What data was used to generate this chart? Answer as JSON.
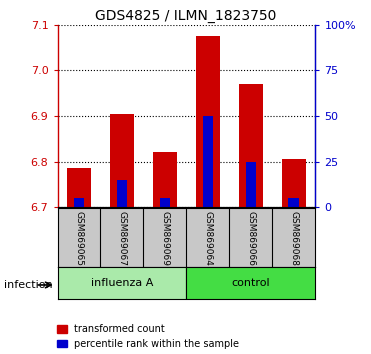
{
  "title": "GDS4825 / ILMN_1823750",
  "samples": [
    "GSM869065",
    "GSM869067",
    "GSM869069",
    "GSM869064",
    "GSM869066",
    "GSM869068"
  ],
  "groups": [
    "influenza A",
    "influenza A",
    "influenza A",
    "control",
    "control",
    "control"
  ],
  "group_labels": [
    "influenza A",
    "control"
  ],
  "group_light_color": "#AAEAAA",
  "group_dark_color": "#44DD44",
  "bar_base": 6.7,
  "red_values": [
    6.785,
    6.905,
    6.82,
    7.075,
    6.97,
    6.805
  ],
  "blue_percentiles": [
    5,
    15,
    5,
    50,
    25,
    5
  ],
  "ylim_left": [
    6.7,
    7.1
  ],
  "ylim_right": [
    0,
    100
  ],
  "yticks_left": [
    6.7,
    6.8,
    6.9,
    7.0,
    7.1
  ],
  "yticks_right": [
    0,
    25,
    50,
    75,
    100
  ],
  "yticks_right_labels": [
    "0",
    "25",
    "50",
    "75",
    "100%"
  ],
  "left_axis_color": "#CC0000",
  "right_axis_color": "#0000CC",
  "bar_color_red": "#CC0000",
  "bar_color_blue": "#0000CC",
  "grid_style": "dotted",
  "sample_area_color": "#C8C8C8",
  "infection_label": "infection",
  "legend_red": "transformed count",
  "legend_blue": "percentile rank within the sample",
  "bar_width": 0.55,
  "blue_bar_width": 0.25
}
